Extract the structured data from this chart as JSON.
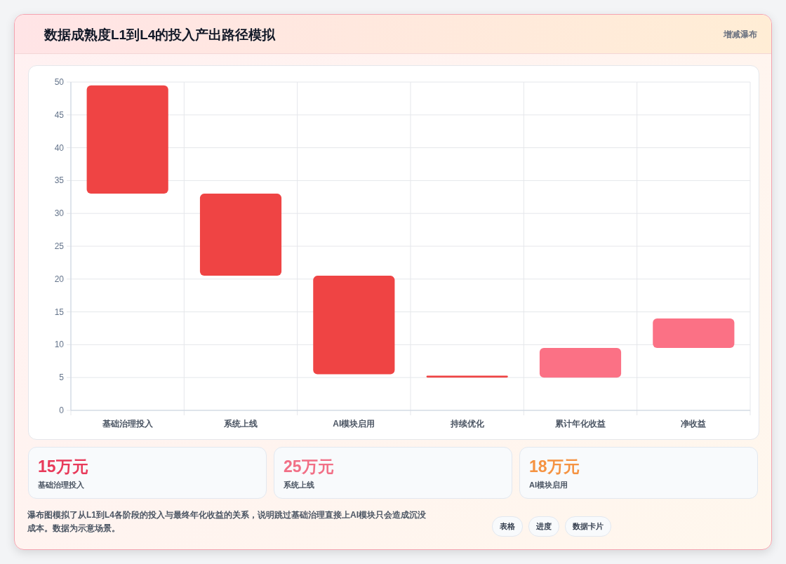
{
  "chart_data": [
    {
      "type": "bar",
      "title": "数据成熟度L1到L4的投入产出路径模拟",
      "subtitle": "增减瀑布",
      "categories": [
        "基础治理投入",
        "系统上线",
        "AI模块启用",
        "持续优化",
        "累计年化收益",
        "净收益"
      ],
      "base": [
        33,
        20.5,
        5.5,
        5,
        5,
        9.5
      ],
      "values": [
        16.5,
        12.5,
        15,
        0.3,
        4.5,
        4.5
      ],
      "colors": [
        "#ef4444",
        "#ef4444",
        "#ef4444",
        "#ef4444",
        "#fb7185",
        "#fb7185"
      ],
      "ylim": [
        0,
        50
      ],
      "yticks": [
        0,
        5,
        10,
        15,
        20,
        25,
        30,
        35,
        40,
        45,
        50
      ],
      "grid": true,
      "annotations": [
        "瀑布图模拟了从L1到L4各阶段的投入与最终年化收益的关系，说明跳过基础治理直接上AI模块只会造成沉没成本。数据为示意场景。",
        "表格",
        "进度",
        "数据卡片"
      ]
    },
    {
      "type": "other",
      "annotations": [
        "15万元",
        "基础治理投入",
        "25万元",
        "系统上线",
        "18万元",
        "AI模块启用"
      ]
    }
  ]
}
